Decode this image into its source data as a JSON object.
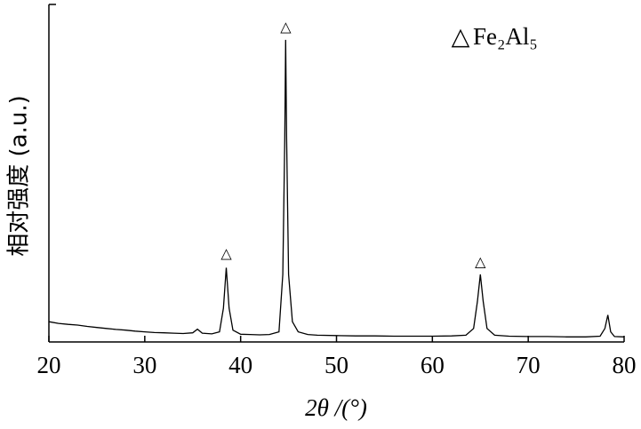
{
  "chart_data": {
    "type": "line",
    "xlabel": "2θ /(°)",
    "ylabel": "相对强度 (a.u.)",
    "x": [
      20,
      21,
      22,
      23,
      24,
      25,
      26,
      27,
      28,
      29,
      30,
      31,
      32,
      33,
      34,
      35,
      35.5,
      36,
      37,
      37.8,
      38.2,
      38.5,
      38.8,
      39.2,
      40,
      41,
      42,
      43,
      44,
      44.4,
      44.6,
      44.7,
      44.8,
      45.0,
      45.4,
      46,
      47,
      48,
      50,
      52,
      54,
      56,
      58,
      60,
      62,
      63.5,
      64.3,
      64.7,
      65,
      65.3,
      65.7,
      66.5,
      68,
      70,
      72,
      74,
      76,
      77.5,
      78,
      78.3,
      78.6,
      79,
      80
    ],
    "values": [
      6,
      5.5,
      5.2,
      5,
      4.6,
      4.3,
      4,
      3.7,
      3.5,
      3.2,
      3,
      2.8,
      2.7,
      2.6,
      2.5,
      2.7,
      3.8,
      2.6,
      2.4,
      3,
      10,
      22,
      10,
      3.5,
      2.3,
      2.2,
      2.1,
      2.2,
      3,
      20,
      60,
      89.5,
      60,
      20,
      6,
      3,
      2.2,
      2,
      1.9,
      1.8,
      1.8,
      1.7,
      1.7,
      1.7,
      1.8,
      2,
      4,
      12,
      20,
      12,
      4,
      2,
      1.7,
      1.6,
      1.6,
      1.5,
      1.5,
      1.7,
      4,
      8,
      3,
      1.6,
      1.5
    ],
    "color": "#000000",
    "xlim": [
      20,
      80
    ],
    "xticks": [
      20,
      30,
      40,
      50,
      60,
      70,
      80
    ],
    "ylim": [
      0,
      100
    ],
    "annotations": [
      {
        "x": 38.5,
        "y": 25.8,
        "text": "△"
      },
      {
        "x": 44.7,
        "y": 92.9,
        "text": "△"
      },
      {
        "x": 65,
        "y": 23.4,
        "text": "△"
      }
    ],
    "legend": {
      "marker": "△",
      "label": "Fe₂Al₅",
      "position": "upper right"
    }
  }
}
